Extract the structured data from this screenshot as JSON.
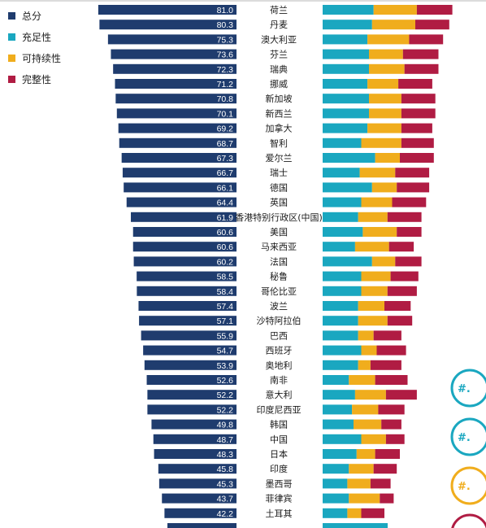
{
  "legend": [
    {
      "label": "总分",
      "color": "#1f3c6e"
    },
    {
      "label": "充足性",
      "color": "#1aa7c0"
    },
    {
      "label": "可持续性",
      "color": "#f0ad1d"
    },
    {
      "label": "完整性",
      "color": "#b01c43"
    }
  ],
  "side_badge_label": "#.",
  "chart_data": {
    "type": "bar",
    "categories": [
      "荷兰",
      "丹麦",
      "澳大利亚",
      "芬兰",
      "瑞典",
      "挪威",
      "新加坡",
      "新西兰",
      "加拿大",
      "智利",
      "爱尔兰",
      "瑞士",
      "德国",
      "英国",
      "香港特别行政区(中国)",
      "美国",
      "马来西亚",
      "法国",
      "秘鲁",
      "哥伦比亚",
      "波兰",
      "沙特阿拉伯",
      "巴西",
      "西班牙",
      "奥地利",
      "南非",
      "意大利",
      "印度尼西亚",
      "韩国",
      "中国",
      "日本",
      "印度",
      "墨西哥",
      "菲律宾",
      "土耳其"
    ],
    "series": [
      {
        "name": "总分",
        "color": "#1f3c6e",
        "values": [
          81.0,
          80.3,
          75.3,
          73.6,
          72.3,
          71.2,
          70.8,
          70.1,
          69.2,
          68.7,
          67.3,
          66.7,
          66.1,
          64.4,
          61.9,
          60.6,
          60.6,
          60.2,
          58.5,
          58.4,
          57.4,
          57.1,
          55.9,
          54.7,
          53.9,
          52.6,
          52.2,
          52.2,
          49.8,
          48.7,
          48.3,
          45.8,
          45.3,
          43.7,
          42.2
        ]
      },
      {
        "name": "充足性",
        "color": "#1aa7c0",
        "values": [
          33,
          32,
          29,
          30,
          30,
          29,
          30,
          30,
          29,
          25,
          34,
          24,
          32,
          25,
          23,
          26,
          21,
          32,
          25,
          25,
          23,
          23,
          23,
          25,
          23,
          17,
          21,
          19,
          20,
          25,
          22,
          17,
          16,
          17,
          16
        ]
      },
      {
        "name": "可持续性",
        "color": "#f0ad1d",
        "values": [
          28,
          28,
          27,
          22,
          23,
          20,
          21,
          21,
          22,
          26,
          16,
          23,
          16,
          20,
          19,
          22,
          22,
          15,
          19,
          17,
          17,
          19,
          10,
          10,
          8,
          17,
          20,
          17,
          18,
          16,
          12,
          16,
          15,
          20,
          9
        ]
      },
      {
        "name": "完整性",
        "color": "#b01c43",
        "values": [
          23,
          22,
          22,
          23,
          22,
          22,
          22,
          22,
          20,
          21,
          22,
          22,
          21,
          22,
          22,
          16,
          16,
          17,
          18,
          19,
          17,
          16,
          18,
          19,
          20,
          21,
          20,
          17,
          13,
          12,
          16,
          15,
          13,
          9,
          15
        ]
      }
    ],
    "xlim": [
      0,
      100
    ]
  }
}
